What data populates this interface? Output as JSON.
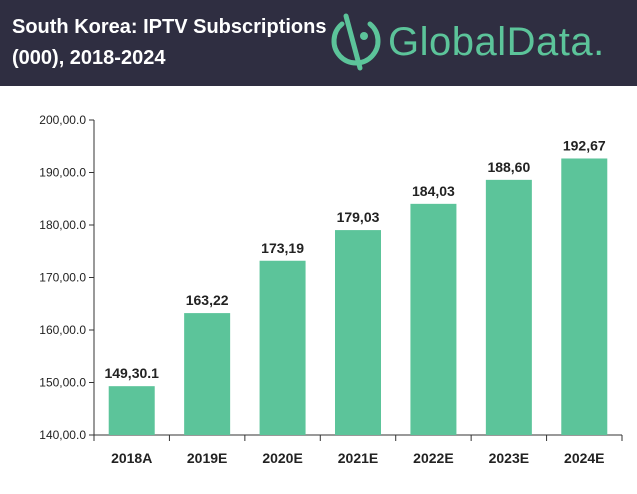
{
  "header": {
    "title_line1": "South Korea: IPTV Subscriptions",
    "title_line2": "(000), 2018-2024",
    "brand": "GlobalData.",
    "brand_color": "#5cc49a",
    "logo_icon": "globaldata-logo-icon"
  },
  "chart_data": {
    "type": "bar",
    "categories": [
      "2018A",
      "2019E",
      "2020E",
      "2021E",
      "2022E",
      "2023E",
      "2024E"
    ],
    "values": [
      149.3,
      163.22,
      173.19,
      179.03,
      184.03,
      188.6,
      192.67
    ],
    "value_labels": [
      "149,30.1",
      "163,22",
      "173,19",
      "179,03",
      "184,03",
      "188,60",
      "192,67"
    ],
    "ylim": [
      140,
      200
    ],
    "yticks": [
      140,
      150,
      160,
      170,
      180,
      190,
      200
    ],
    "ytick_labels": [
      "140,00.0",
      "150,00.0",
      "160,00.0",
      "170,00.0",
      "180,00.0",
      "190,00.0",
      "200,00.0"
    ],
    "xlabel": "",
    "ylabel": "",
    "bar_color": "#5cc49a",
    "grid": false
  }
}
